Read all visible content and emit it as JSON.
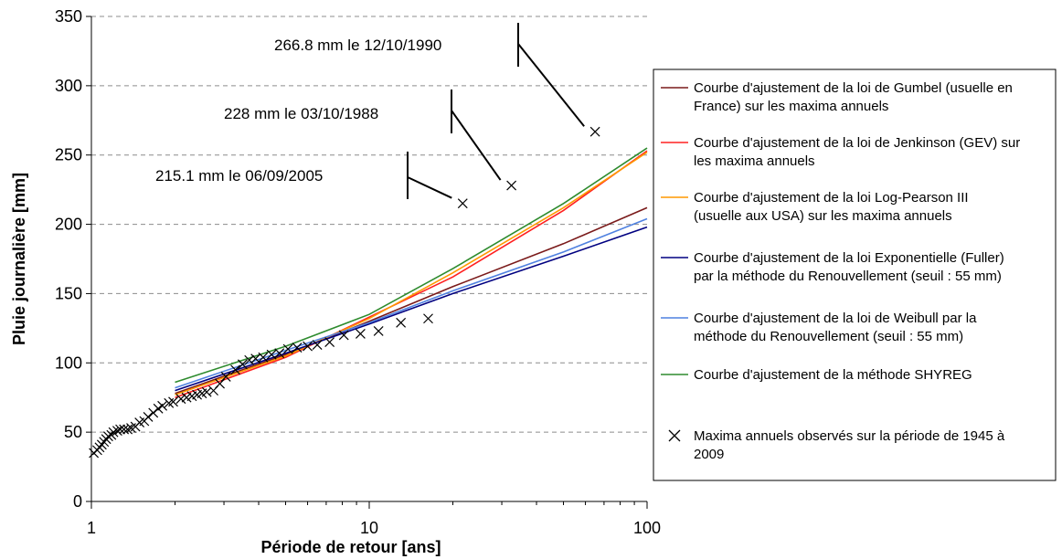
{
  "chart_data": {
    "type": "line",
    "title": "",
    "xlabel": "Période de retour [ans]",
    "ylabel": "Pluie journalière [mm]",
    "xscale": "log",
    "xlim": [
      1,
      100
    ],
    "ylim": [
      0,
      350
    ],
    "x_ticks": [
      1,
      10,
      100
    ],
    "y_ticks": [
      0,
      50,
      100,
      150,
      200,
      250,
      300,
      350
    ],
    "grid": "horizontal dashed",
    "legend_position": "right",
    "series": [
      {
        "name": "Courbe d'ajustement de la loi de Gumbel (usuelle en France) sur les maxima annuels",
        "color": "#7a1a1a",
        "points": [
          [
            2,
            78
          ],
          [
            5,
            106
          ],
          [
            10,
            130
          ],
          [
            20,
            155
          ],
          [
            50,
            186
          ],
          [
            100,
            212
          ]
        ]
      },
      {
        "name": "Courbe d'ajustement de la loi de Jenkinson (GEV) sur les maxima annuels",
        "color": "#ff2020",
        "points": [
          [
            2,
            75
          ],
          [
            5,
            104
          ],
          [
            10,
            133
          ],
          [
            20,
            162
          ],
          [
            50,
            210
          ],
          [
            100,
            253
          ]
        ]
      },
      {
        "name": "Courbe d'ajustement de la loi Log-Pearson III (usuelle aux USA) sur les maxima annuels",
        "color": "#ff9900",
        "points": [
          [
            2,
            77
          ],
          [
            5,
            105
          ],
          [
            10,
            132
          ],
          [
            20,
            165
          ],
          [
            50,
            212
          ],
          [
            100,
            252
          ]
        ]
      },
      {
        "name": "Courbe d'ajustement de la loi Exponentielle (Fuller) par la méthode du Renouvellement (seuil : 55 mm)",
        "color": "#000080",
        "points": [
          [
            2,
            80
          ],
          [
            5,
            107
          ],
          [
            10,
            128
          ],
          [
            20,
            150
          ],
          [
            50,
            177
          ],
          [
            100,
            198
          ]
        ]
      },
      {
        "name": "Courbe d'ajustement de la loi de Weibull par la méthode du Renouvellement (seuil : 55 mm)",
        "color": "#4f81e0",
        "points": [
          [
            2,
            82
          ],
          [
            5,
            109
          ],
          [
            10,
            129
          ],
          [
            20,
            152
          ],
          [
            50,
            180
          ],
          [
            100,
            204
          ]
        ]
      },
      {
        "name": "Courbe d'ajustement de la méthode SHYREG",
        "color": "#2e8b2e",
        "points": [
          [
            2,
            86
          ],
          [
            5,
            112
          ],
          [
            10,
            135
          ],
          [
            20,
            168
          ],
          [
            50,
            215
          ],
          [
            100,
            255
          ]
        ]
      }
    ],
    "scatter": {
      "name": "Maxima annuels observés sur la période de 1945 à 2009",
      "marker": "x",
      "color": "#000000",
      "points": [
        [
          1.02,
          35
        ],
        [
          1.05,
          37
        ],
        [
          1.07,
          39
        ],
        [
          1.09,
          41
        ],
        [
          1.11,
          43
        ],
        [
          1.13,
          45
        ],
        [
          1.15,
          47
        ],
        [
          1.18,
          48
        ],
        [
          1.2,
          50
        ],
        [
          1.24,
          51
        ],
        [
          1.27,
          52
        ],
        [
          1.31,
          52
        ],
        [
          1.35,
          52
        ],
        [
          1.39,
          53
        ],
        [
          1.44,
          54
        ],
        [
          1.49,
          57
        ],
        [
          1.55,
          58
        ],
        [
          1.6,
          61
        ],
        [
          1.67,
          64
        ],
        [
          1.74,
          67
        ],
        [
          1.8,
          69
        ],
        [
          1.9,
          71
        ],
        [
          1.97,
          72
        ],
        [
          2.1,
          74
        ],
        [
          2.2,
          75
        ],
        [
          2.3,
          76
        ],
        [
          2.4,
          77
        ],
        [
          2.5,
          78
        ],
        [
          2.6,
          79
        ],
        [
          2.75,
          80
        ],
        [
          2.9,
          85
        ],
        [
          3.05,
          90
        ],
        [
          3.3,
          95
        ],
        [
          3.5,
          99
        ],
        [
          3.7,
          102
        ],
        [
          3.9,
          103
        ],
        [
          4.15,
          104
        ],
        [
          4.45,
          106
        ],
        [
          4.75,
          107
        ],
        [
          5.1,
          110
        ],
        [
          5.5,
          111
        ],
        [
          6,
          112
        ],
        [
          6.5,
          113
        ],
        [
          7.2,
          115
        ],
        [
          8.1,
          120
        ],
        [
          9.3,
          121
        ],
        [
          10.8,
          123
        ],
        [
          13,
          129
        ],
        [
          16.3,
          132
        ],
        [
          21.7,
          215.1
        ],
        [
          32.5,
          228
        ],
        [
          65,
          266.8
        ]
      ]
    },
    "annotations": [
      {
        "text": "266.8 mm le 12/10/1990",
        "target": [
          65,
          266.8
        ]
      },
      {
        "text": "228 mm le 03/10/1988",
        "target": [
          32.5,
          228
        ]
      },
      {
        "text": "215.1 mm le 06/09/2005",
        "target": [
          21.7,
          215.1
        ]
      }
    ]
  }
}
